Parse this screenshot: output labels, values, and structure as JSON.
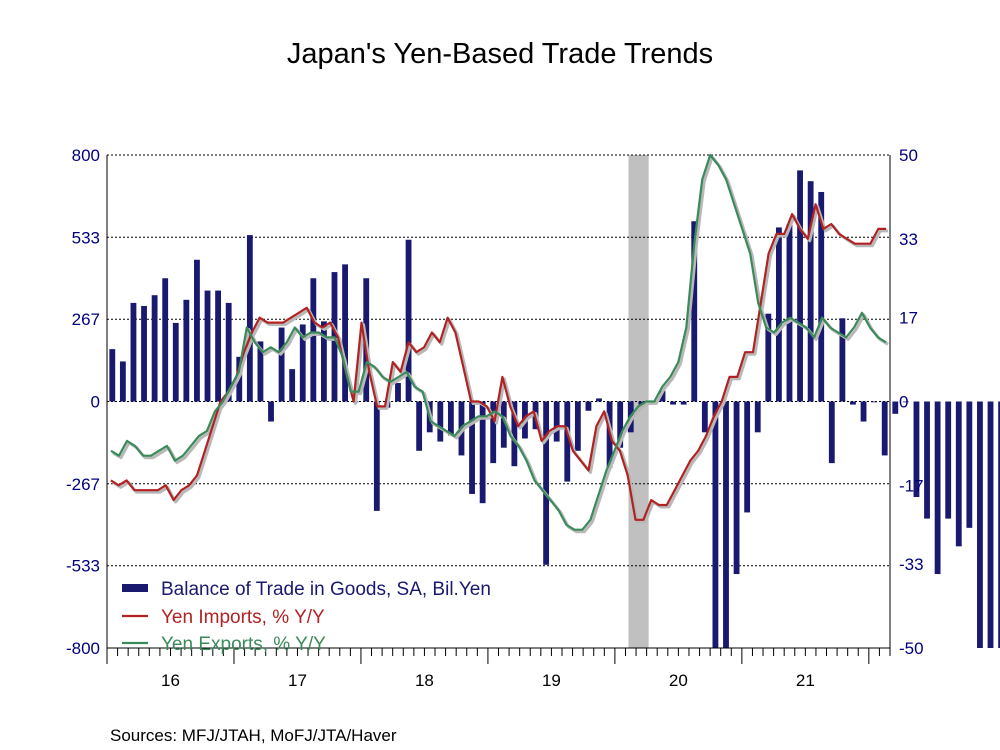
{
  "chart_data": {
    "type": "bar+line",
    "title": "Japan's Yen-Based Trade Trends",
    "source": "Sources:  MFJ/JTAH, MoFJ/JTA/Haver",
    "x_start": "2016-01",
    "x_year_labels": [
      "16",
      "17",
      "18",
      "19",
      "20",
      "21"
    ],
    "y_left": {
      "min": -800,
      "max": 800,
      "ticks": [
        800,
        533,
        267,
        0,
        -267,
        -533,
        -800
      ]
    },
    "y_right": {
      "min": -50,
      "max": 50,
      "ticks": [
        50,
        33,
        17,
        0,
        -17,
        -33,
        -50
      ]
    },
    "recession_shading": {
      "start": "2020-02",
      "end": "2020-04"
    },
    "legend": [
      {
        "label": "Balance of Trade in Goods, SA, Bil.Yen",
        "color": "#191970",
        "kind": "bar"
      },
      {
        "label": "Yen Imports, % Y/Y",
        "color": "#b22222",
        "kind": "line"
      },
      {
        "label": "Yen Exports, % Y/Y",
        "color": "#3a8a5a",
        "kind": "line"
      }
    ],
    "series": [
      {
        "name": "Balance of Trade in Goods, SA, Bil.Yen",
        "axis": "left",
        "color": "#191970",
        "values": [
          170,
          130,
          320,
          310,
          345,
          400,
          255,
          330,
          460,
          360,
          360,
          320,
          145,
          540,
          195,
          -65,
          240,
          105,
          250,
          400,
          260,
          420,
          445,
          0,
          400,
          -355,
          -20,
          60,
          525,
          -160,
          -100,
          -130,
          -110,
          -175,
          -300,
          -330,
          -200,
          -150,
          -210,
          -120,
          -90,
          -530,
          -130,
          -260,
          -160,
          -30,
          10,
          -215,
          -150,
          -100,
          -10,
          -10,
          35,
          -10,
          -10,
          585,
          -100,
          -800,
          -800,
          -560,
          -360,
          -100,
          285,
          565,
          575,
          750,
          715,
          680,
          -200,
          270,
          -10,
          -65,
          0,
          -175,
          -40,
          0,
          -310,
          -380,
          -560,
          -380,
          -470,
          -410,
          -800,
          -800,
          -800
        ]
      },
      {
        "name": "Yen Imports, % Y/Y",
        "axis": "right",
        "color": "#b22222",
        "values": [
          -16,
          -17,
          -16,
          -18,
          -18,
          -18,
          -18,
          -17,
          -20,
          -18,
          -17,
          -15,
          -10,
          -5,
          0,
          2,
          5,
          10,
          14,
          17,
          16,
          16,
          16,
          17,
          18,
          19,
          16,
          15,
          16,
          13,
          6,
          0,
          16,
          6,
          -1,
          -1,
          8,
          6,
          12,
          10,
          11,
          14,
          12,
          17,
          14,
          7,
          0,
          0,
          -1,
          -4,
          5,
          -1,
          -5,
          -3,
          -2,
          -8,
          -6,
          -5,
          -5,
          -10,
          -12,
          -14,
          -5,
          -2,
          -8,
          -10,
          -15,
          -24,
          -24,
          -20,
          -21,
          -21,
          -18,
          -15,
          -12,
          -10,
          -7,
          -3,
          0,
          5,
          5,
          10,
          10,
          20,
          30,
          34,
          34,
          38,
          35,
          33,
          40,
          35,
          36,
          34,
          33,
          32,
          32,
          32,
          35,
          35
        ]
      },
      {
        "name": "Yen Exports, % Y/Y",
        "axis": "right",
        "color": "#3a8a5a",
        "values": [
          -10,
          -11,
          -8,
          -9,
          -11,
          -11,
          -10,
          -9,
          -12,
          -11,
          -9,
          -7,
          -6,
          -2,
          0,
          3,
          6,
          15,
          12,
          10,
          11,
          10,
          12,
          15,
          13,
          14,
          14,
          13,
          13,
          9,
          2,
          2,
          8,
          7,
          5,
          4,
          5,
          6,
          3,
          2,
          -4,
          -5,
          -6,
          -7,
          -5,
          -4,
          -3,
          -3,
          -2,
          -3,
          -7,
          -9,
          -12,
          -16,
          -18,
          -20,
          -22,
          -25,
          -26,
          -26,
          -24,
          -19,
          -14,
          -10,
          -6,
          -3,
          -1,
          0,
          0,
          3,
          5,
          8,
          15,
          32,
          45,
          50,
          48,
          45,
          40,
          35,
          30,
          20,
          15,
          14,
          16,
          17,
          16,
          15,
          13,
          17,
          15,
          14,
          13,
          15,
          18,
          15,
          13,
          12
        ]
      }
    ]
  }
}
